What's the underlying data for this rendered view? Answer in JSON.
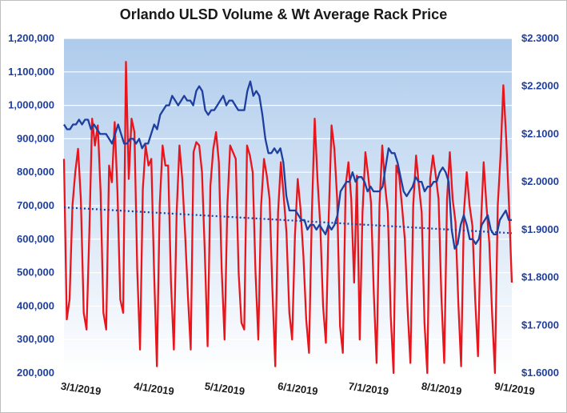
{
  "chart_data": {
    "type": "line",
    "title": "Orlando ULSD Volume & Wt Average Rack Price",
    "xlabel": "",
    "ylabel": "",
    "grid": true,
    "legend": "none",
    "x_ticks": [
      "3/1/2019",
      "4/1/2019",
      "5/1/2019",
      "6/1/2019",
      "7/1/2019",
      "8/1/2019",
      "9/1/2019"
    ],
    "x_start": "2019-02-22",
    "x_end": "2019-08-31",
    "y_left_ticks": [
      "200,000",
      "300,000",
      "400,000",
      "500,000",
      "600,000",
      "700,000",
      "800,000",
      "900,000",
      "1,000,000",
      "1,100,000",
      "1,200,000"
    ],
    "y_left_range": [
      200000,
      1200000
    ],
    "y_right_ticks": [
      "$1.6000",
      "$1.7000",
      "$1.8000",
      "$1.9000",
      "$2.0000",
      "$2.1000",
      "$2.2000",
      "$2.3000"
    ],
    "y_right_range": [
      1.6,
      2.3
    ],
    "colors": {
      "volume": "#e8161c",
      "price": "#1f3f9f",
      "trend": "#1f3f9f",
      "plot_bg_top": "#aecbec",
      "plot_bg_bottom": "#ffffff",
      "grid": "#ffffff"
    },
    "series": [
      {
        "axis": "left",
        "color": "#e8161c",
        "values": [
          840000,
          360000,
          420000,
          700000,
          800000,
          870000,
          720000,
          380000,
          330000,
          620000,
          960000,
          880000,
          940000,
          740000,
          380000,
          330000,
          820000,
          770000,
          950000,
          740000,
          420000,
          380000,
          1130000,
          780000,
          960000,
          920000,
          510000,
          270000,
          750000,
          880000,
          820000,
          840000,
          500000,
          220000,
          700000,
          880000,
          820000,
          820000,
          470000,
          270000,
          680000,
          880000,
          780000,
          620000,
          430000,
          270000,
          860000,
          890000,
          880000,
          800000,
          560000,
          280000,
          760000,
          870000,
          920000,
          830000,
          510000,
          300000,
          700000,
          880000,
          860000,
          840000,
          500000,
          350000,
          330000,
          880000,
          850000,
          800000,
          500000,
          300000,
          700000,
          840000,
          790000,
          720000,
          450000,
          220000,
          680000,
          830000,
          730000,
          620000,
          380000,
          300000,
          610000,
          780000,
          690000,
          550000,
          360000,
          260000,
          670000,
          960000,
          780000,
          640000,
          400000,
          290000,
          670000,
          940000,
          870000,
          720000,
          340000,
          260000,
          760000,
          830000,
          720000,
          470000,
          790000,
          300000,
          680000,
          860000,
          790000,
          710000,
          440000,
          230000,
          700000,
          880000,
          760000,
          680000,
          370000,
          200000,
          820000,
          790000,
          700000,
          600000,
          390000,
          230000,
          700000,
          850000,
          760000,
          680000,
          350000,
          200000,
          780000,
          850000,
          790000,
          720000,
          430000,
          230000,
          720000,
          860000,
          720000,
          650000,
          410000,
          220000,
          680000,
          800000,
          700000,
          640000,
          420000,
          250000,
          640000,
          830000,
          700000,
          590000,
          380000,
          200000,
          700000,
          850000,
          1060000,
          900000,
          700000,
          470000
        ]
      },
      {
        "axis": "right",
        "color": "#1f3f9f",
        "values": [
          2.12,
          2.11,
          2.11,
          2.12,
          2.12,
          2.13,
          2.12,
          2.13,
          2.13,
          2.11,
          2.12,
          2.11,
          2.1,
          2.1,
          2.1,
          2.09,
          2.08,
          2.1,
          2.12,
          2.1,
          2.08,
          2.08,
          2.09,
          2.09,
          2.08,
          2.09,
          2.07,
          2.08,
          2.08,
          2.1,
          2.12,
          2.11,
          2.14,
          2.15,
          2.16,
          2.16,
          2.18,
          2.17,
          2.16,
          2.17,
          2.18,
          2.17,
          2.17,
          2.16,
          2.19,
          2.2,
          2.19,
          2.15,
          2.14,
          2.15,
          2.15,
          2.16,
          2.17,
          2.18,
          2.16,
          2.17,
          2.17,
          2.16,
          2.15,
          2.15,
          2.15,
          2.19,
          2.21,
          2.18,
          2.19,
          2.18,
          2.14,
          2.09,
          2.06,
          2.06,
          2.07,
          2.06,
          2.07,
          2.04,
          1.97,
          1.94,
          1.94,
          1.94,
          1.93,
          1.92,
          1.92,
          1.9,
          1.91,
          1.91,
          1.9,
          1.91,
          1.9,
          1.89,
          1.91,
          1.9,
          1.91,
          1.93,
          1.98,
          1.99,
          2.0,
          2.0,
          2.02,
          2.0,
          2.01,
          2.01,
          2.0,
          1.98,
          1.99,
          1.98,
          1.98,
          1.98,
          1.99,
          2.03,
          2.07,
          2.06,
          2.06,
          2.04,
          2.01,
          1.98,
          1.97,
          1.98,
          1.99,
          2.01,
          2.0,
          2.0,
          1.98,
          1.99,
          1.99,
          2.0,
          2.0,
          2.02,
          2.03,
          2.02,
          2.0,
          1.9,
          1.86,
          1.87,
          1.91,
          1.93,
          1.91,
          1.88,
          1.88,
          1.87,
          1.88,
          1.91,
          1.92,
          1.93,
          1.9,
          1.89,
          1.89,
          1.92,
          1.93,
          1.94,
          1.92,
          1.92
        ]
      },
      {
        "axis": "left",
        "type": "trend",
        "color": "#1f3f9f",
        "values": [
          695000,
          618000
        ]
      }
    ]
  }
}
